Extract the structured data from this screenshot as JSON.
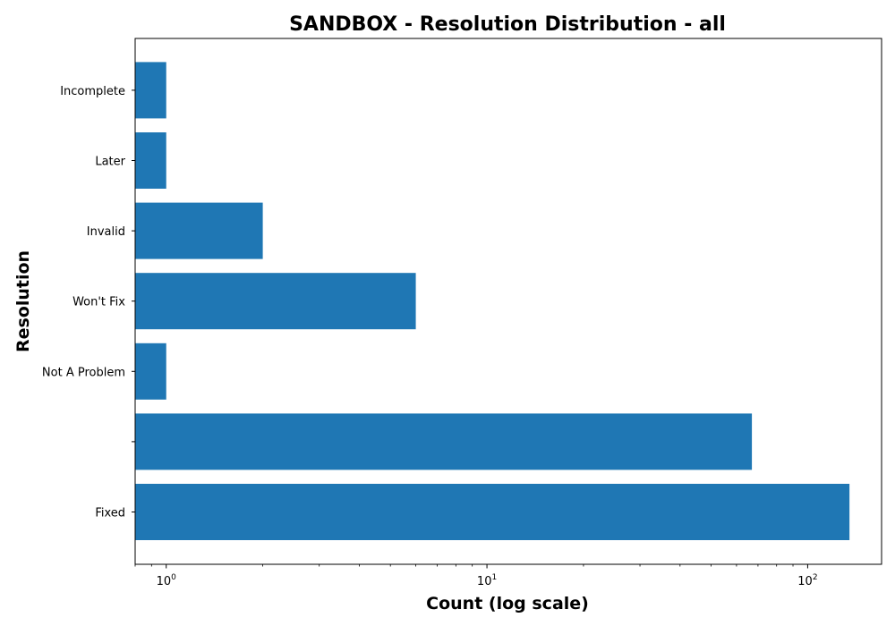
{
  "chart_data": {
    "type": "bar",
    "orientation": "horizontal",
    "title": "SANDBOX - Resolution Distribution - all",
    "xlabel": "Count (log scale)",
    "ylabel": "Resolution",
    "xscale": "log",
    "xlim": [
      0.8,
      170
    ],
    "categories": [
      "Fixed",
      "",
      "Not A Problem",
      "Won't Fix",
      "Invalid",
      "Later",
      "Incomplete"
    ],
    "values": [
      135,
      67,
      1,
      6,
      2,
      1,
      1
    ],
    "x_ticks": [
      {
        "base": "10",
        "exp": "0",
        "value": 1
      },
      {
        "base": "10",
        "exp": "1",
        "value": 10
      },
      {
        "base": "10",
        "exp": "2",
        "value": 100
      }
    ],
    "grid": false,
    "bar_color": "#1f77b4"
  }
}
